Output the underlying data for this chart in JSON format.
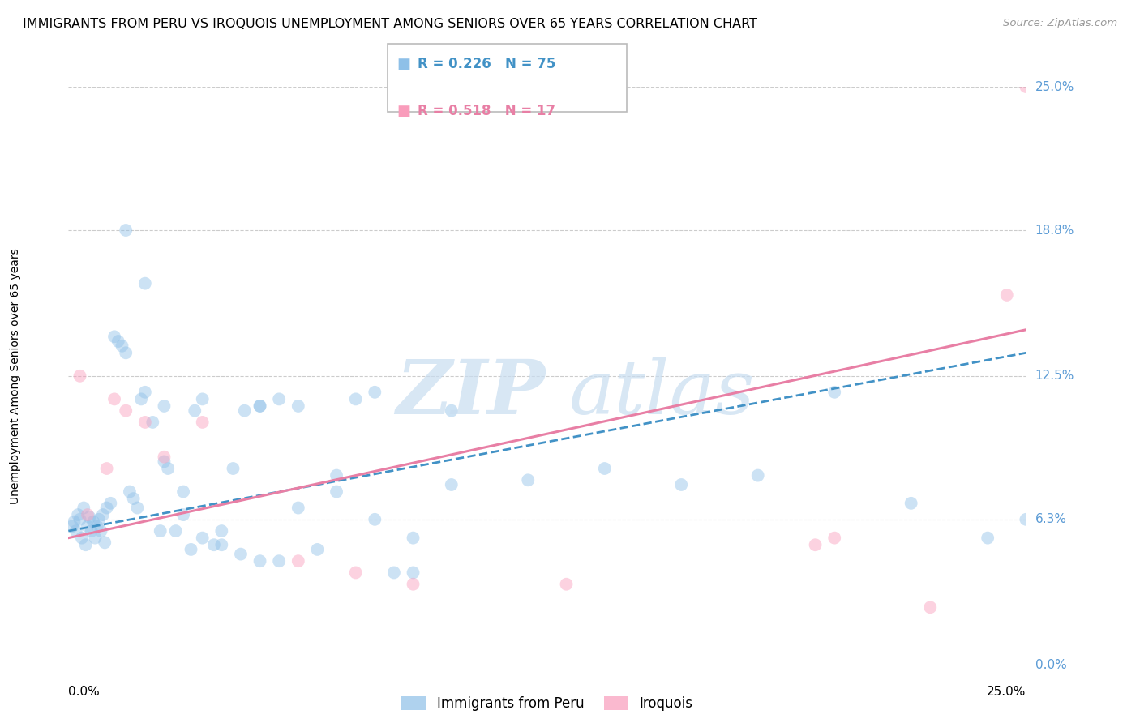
{
  "title": "IMMIGRANTS FROM PERU VS IROQUOIS UNEMPLOYMENT AMONG SENIORS OVER 65 YEARS CORRELATION CHART",
  "source": "Source: ZipAtlas.com",
  "ylabel": "Unemployment Among Seniors over 65 years",
  "ytick_values": [
    0.0,
    6.3,
    12.5,
    18.8,
    25.0
  ],
  "ytick_labels": [
    "0.0%",
    "6.3%",
    "12.5%",
    "18.8%",
    "25.0%"
  ],
  "xlim": [
    0.0,
    25.0
  ],
  "ylim": [
    0.0,
    25.0
  ],
  "legend_entries": [
    {
      "label": "Immigrants from Peru",
      "R": "0.226",
      "N": "75",
      "color": "#8ec0e8"
    },
    {
      "label": "Iroquois",
      "R": "0.518",
      "N": "17",
      "color": "#f99cbb"
    }
  ],
  "blue_scatter_x": [
    0.1,
    0.15,
    0.2,
    0.25,
    0.3,
    0.35,
    0.4,
    0.45,
    0.5,
    0.55,
    0.6,
    0.65,
    0.7,
    0.75,
    0.8,
    0.85,
    0.9,
    0.95,
    1.0,
    1.1,
    1.2,
    1.3,
    1.4,
    1.5,
    1.6,
    1.7,
    1.8,
    1.9,
    2.0,
    2.2,
    2.4,
    2.6,
    2.8,
    3.0,
    3.2,
    3.5,
    3.8,
    4.0,
    4.3,
    4.6,
    5.0,
    5.5,
    6.0,
    6.5,
    7.0,
    7.5,
    8.0,
    8.5,
    9.0,
    10.0,
    2.5,
    3.0,
    3.3,
    4.0,
    4.5,
    5.0,
    5.5,
    6.0,
    7.0,
    8.0,
    9.0,
    10.0,
    12.0,
    14.0,
    16.0,
    18.0,
    20.0,
    22.0,
    24.0,
    25.0,
    1.5,
    2.0,
    2.5,
    3.5,
    5.0
  ],
  "blue_scatter_y": [
    6.0,
    6.2,
    5.8,
    6.5,
    6.3,
    5.5,
    6.8,
    5.2,
    6.0,
    6.4,
    5.8,
    6.2,
    5.5,
    6.0,
    6.3,
    5.8,
    6.5,
    5.3,
    6.8,
    7.0,
    14.2,
    14.0,
    13.8,
    13.5,
    7.5,
    7.2,
    6.8,
    11.5,
    11.8,
    10.5,
    5.8,
    8.5,
    5.8,
    7.5,
    5.0,
    5.5,
    5.2,
    5.8,
    8.5,
    11.0,
    11.2,
    11.5,
    6.8,
    5.0,
    8.2,
    11.5,
    11.8,
    4.0,
    5.5,
    11.0,
    8.8,
    6.5,
    11.0,
    5.2,
    4.8,
    11.2,
    4.5,
    11.2,
    7.5,
    6.3,
    4.0,
    7.8,
    8.0,
    8.5,
    7.8,
    8.2,
    11.8,
    7.0,
    5.5,
    6.3,
    18.8,
    16.5,
    11.2,
    11.5,
    4.5
  ],
  "pink_scatter_x": [
    0.3,
    0.5,
    1.2,
    1.5,
    2.0,
    2.5,
    3.5,
    6.0,
    7.5,
    9.0,
    13.0,
    19.5,
    20.0,
    22.5,
    24.5,
    25.0,
    1.0
  ],
  "pink_scatter_y": [
    12.5,
    6.5,
    11.5,
    11.0,
    10.5,
    9.0,
    10.5,
    4.5,
    4.0,
    3.5,
    3.5,
    5.2,
    5.5,
    2.5,
    16.0,
    25.0,
    8.5
  ],
  "blue_line_x": [
    0.0,
    25.0
  ],
  "blue_line_y": [
    5.8,
    13.5
  ],
  "pink_line_x": [
    0.0,
    25.0
  ],
  "pink_line_y": [
    5.5,
    14.5
  ],
  "scatter_size": 130,
  "scatter_alpha": 0.45,
  "blue_color": "#8ec0e8",
  "pink_color": "#f99cbb",
  "blue_line_color": "#4292c6",
  "pink_line_color": "#e87fa5",
  "grid_color": "#cccccc",
  "title_fontsize": 11.5,
  "axis_label_fontsize": 10,
  "tick_fontsize": 11,
  "legend_fontsize": 12,
  "source_fontsize": 9.5
}
